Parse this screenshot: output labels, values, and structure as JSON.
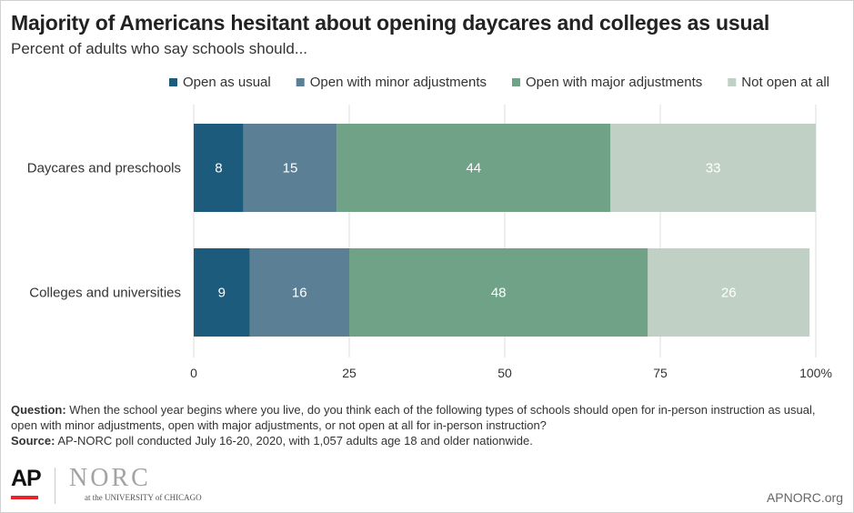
{
  "title": "Majority of Americans hesitant about opening daycares and colleges as usual",
  "subtitle": "Percent of adults who say schools should...",
  "chart_data": {
    "type": "bar",
    "orientation": "horizontal",
    "stacked": true,
    "categories": [
      "Daycares and preschools",
      "Colleges and universities"
    ],
    "series": [
      {
        "name": "Open as usual",
        "values": [
          8,
          9
        ],
        "color": "#1c5b7b"
      },
      {
        "name": "Open with minor adjustments",
        "values": [
          15,
          16
        ],
        "color": "#5b7f94"
      },
      {
        "name": "Open with major adjustments",
        "values": [
          44,
          48
        ],
        "color": "#6fa286"
      },
      {
        "name": "Not open at all",
        "values": [
          33,
          26
        ],
        "color": "#c1d0c4"
      }
    ],
    "xlim": [
      0,
      100
    ],
    "xticks": [
      "0",
      "25",
      "50",
      "75",
      "100%"
    ],
    "xtick_values": [
      0,
      25,
      50,
      75,
      100
    ],
    "legend": "top",
    "grid": true
  },
  "notes": {
    "question_label": "Question:",
    "question_text": "When the school year begins where you live, do you think each of the following types of schools should open for in-person instruction as usual, open with minor adjustments, open with major adjustments, or not open at all for in-person instruction?",
    "source_label": "Source:",
    "source_text": "AP-NORC poll conducted July 16-20, 2020, with 1,057 adults age 18 and older nationwide."
  },
  "footer": {
    "ap_logo": "AP",
    "norc_logo": "NORC",
    "norc_sub": "at the UNIVERSITY of CHICAGO",
    "site": "APNORC.org"
  }
}
